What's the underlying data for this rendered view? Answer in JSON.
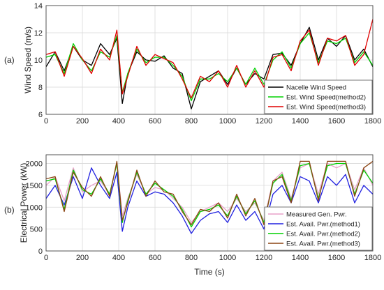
{
  "figure": {
    "panel_a_label": "(a)",
    "panel_b_label": "(b)"
  },
  "chart_data": [
    {
      "type": "line",
      "panel": "(a)",
      "title": "",
      "xlabel": "",
      "ylabel": "Wind Speed (m/s)",
      "xlim": [
        0,
        1800
      ],
      "ylim": [
        6,
        14
      ],
      "xticks": [
        0,
        200,
        400,
        600,
        800,
        1000,
        1200,
        1400,
        1600,
        1800
      ],
      "yticks": [
        6,
        8,
        10,
        12,
        14
      ],
      "grid": true,
      "legend_position": "bottom-right",
      "x": [
        0,
        50,
        100,
        150,
        200,
        250,
        300,
        350,
        390,
        420,
        450,
        500,
        550,
        600,
        650,
        700,
        750,
        800,
        850,
        900,
        950,
        1000,
        1050,
        1100,
        1150,
        1200,
        1250,
        1300,
        1350,
        1400,
        1450,
        1500,
        1550,
        1600,
        1650,
        1700,
        1750,
        1800
      ],
      "series": [
        {
          "name": "Nacelle Wind Speed",
          "color": "#000000",
          "values": [
            9.5,
            10.6,
            9.2,
            11.0,
            10.0,
            9.6,
            11.2,
            10.4,
            11.6,
            6.8,
            9.0,
            10.6,
            10.0,
            9.9,
            10.3,
            9.4,
            9.0,
            6.4,
            8.4,
            8.8,
            9.2,
            8.2,
            9.4,
            8.2,
            9.0,
            8.6,
            10.4,
            10.5,
            9.6,
            11.2,
            12.4,
            10.0,
            11.6,
            11.0,
            11.8,
            10.0,
            10.8,
            9.5
          ]
        },
        {
          "name": "Est. Wind Speed(method2)",
          "color": "#00d000",
          "values": [
            10.2,
            10.4,
            9.0,
            11.2,
            10.0,
            9.2,
            10.6,
            10.2,
            11.8,
            7.6,
            9.0,
            10.8,
            9.8,
            10.2,
            10.2,
            9.6,
            8.8,
            7.0,
            8.6,
            8.6,
            9.0,
            8.4,
            9.4,
            8.2,
            9.4,
            8.2,
            10.0,
            10.6,
            9.4,
            11.2,
            12.0,
            9.8,
            11.4,
            11.2,
            11.6,
            9.8,
            10.6,
            9.6
          ]
        },
        {
          "name": "Est. Wind Speed(method3)",
          "color": "#e00000",
          "values": [
            10.4,
            10.6,
            8.8,
            11.0,
            10.1,
            9.0,
            10.8,
            10.0,
            12.2,
            7.5,
            8.8,
            11.0,
            9.6,
            10.4,
            10.1,
            9.8,
            8.6,
            7.2,
            8.8,
            8.4,
            9.2,
            8.0,
            9.6,
            8.0,
            9.2,
            8.0,
            10.2,
            10.4,
            9.2,
            11.4,
            12.2,
            9.6,
            11.6,
            11.4,
            11.8,
            9.6,
            10.4,
            13.0
          ]
        }
      ]
    },
    {
      "type": "line",
      "panel": "(b)",
      "title": "",
      "xlabel": "Time (s)",
      "ylabel": "Electrical Power (kW)",
      "xlim": [
        0,
        1800
      ],
      "ylim": [
        0,
        2200
      ],
      "xticks": [
        0,
        200,
        400,
        600,
        800,
        1000,
        1200,
        1400,
        1600,
        1800
      ],
      "yticks": [
        0,
        500,
        1000,
        1500,
        2000
      ],
      "grid": true,
      "legend_position": "bottom-right",
      "x": [
        0,
        50,
        100,
        150,
        200,
        250,
        300,
        350,
        390,
        420,
        450,
        500,
        550,
        600,
        650,
        700,
        750,
        800,
        850,
        900,
        950,
        1000,
        1050,
        1100,
        1150,
        1200,
        1250,
        1300,
        1350,
        1400,
        1450,
        1500,
        1550,
        1600,
        1650,
        1700,
        1750,
        1800
      ],
      "series": [
        {
          "name": "Measured Gen. Pwr.",
          "color": "#e8a0c8",
          "values": [
            1500,
            1700,
            1150,
            1900,
            1350,
            1500,
            1600,
            1300,
            2000,
            800,
            1200,
            1750,
            1300,
            1450,
            1400,
            1200,
            1000,
            650,
            900,
            1000,
            1100,
            900,
            1200,
            900,
            1100,
            700,
            1600,
            1800,
            1200,
            1900,
            2000,
            1300,
            2000,
            1900,
            2000,
            1400,
            1900,
            1500
          ]
        },
        {
          "name": "Est. Avail. Pwr.(method1)",
          "color": "#2020e0",
          "values": [
            1200,
            1500,
            1050,
            1700,
            1200,
            1900,
            1500,
            1200,
            1800,
            450,
            1000,
            1600,
            1250,
            1350,
            1300,
            1100,
            800,
            400,
            700,
            850,
            900,
            650,
            1050,
            700,
            900,
            500,
            1300,
            1500,
            1100,
            1700,
            1600,
            1100,
            1700,
            1500,
            1750,
            1100,
            1500,
            1300
          ]
        },
        {
          "name": "Est. Avail. Pwr.(method2)",
          "color": "#00d000",
          "values": [
            1600,
            1650,
            950,
            1850,
            1400,
            1300,
            1650,
            1300,
            2000,
            650,
            1150,
            1800,
            1300,
            1550,
            1400,
            1250,
            950,
            550,
            900,
            950,
            1050,
            800,
            1250,
            850,
            1150,
            650,
            1550,
            1750,
            1150,
            1950,
            2000,
            1200,
            1950,
            2000,
            2000,
            1300,
            1850,
            1550
          ]
        },
        {
          "name": "Est. Avail. Pwr.(method3)",
          "color": "#8b4513",
          "values": [
            1650,
            1700,
            900,
            1800,
            1450,
            1250,
            1700,
            1250,
            2050,
            700,
            1100,
            1850,
            1250,
            1600,
            1350,
            1300,
            900,
            600,
            950,
            900,
            1100,
            750,
            1300,
            800,
            1200,
            600,
            1600,
            1700,
            1100,
            2050,
            2050,
            1150,
            2050,
            2050,
            2050,
            1250,
            1900,
            2050
          ]
        }
      ]
    }
  ]
}
